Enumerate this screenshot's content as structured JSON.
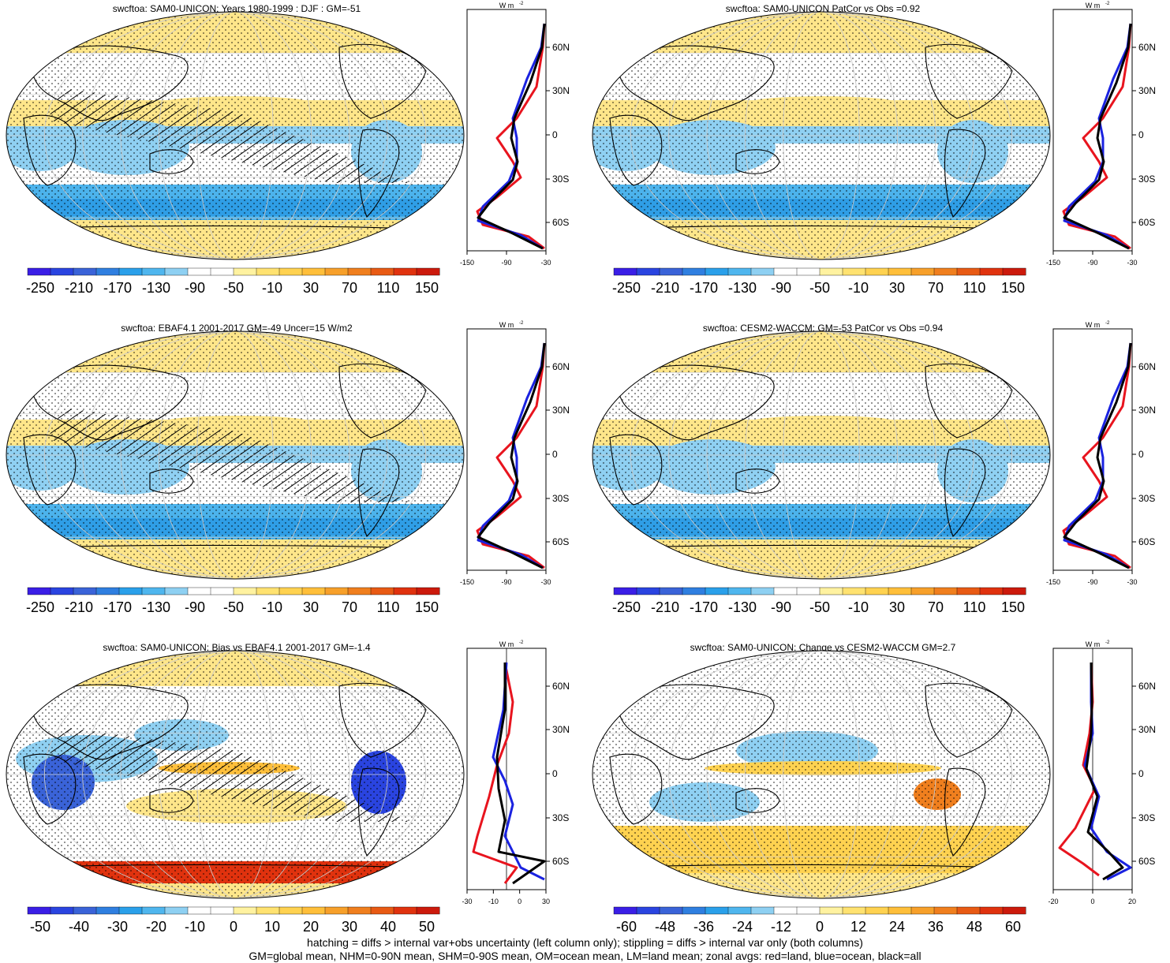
{
  "panels": [
    {
      "id": "p1",
      "title": "swcftoa: SAM0-UNICON: Years 1980-1999 : DJF : GM=-51",
      "colorbar_labels": [
        "-250",
        "-210",
        "-170",
        "-130",
        "-90",
        "-50",
        "-10",
        "30",
        "70",
        "110",
        "150"
      ],
      "zonal_x_labels": [
        "-150",
        "-90",
        "-30"
      ],
      "zonal_units": "W m",
      "zonal_units_sup": "-2",
      "lat_labels": [
        "60N",
        "30N",
        "0",
        "30S",
        "60S"
      ],
      "hatching": true,
      "kind": "abs"
    },
    {
      "id": "p2",
      "title": "swcftoa: SAM0-UNICON PatCor vs Obs =0.92",
      "colorbar_labels": [
        "-250",
        "-210",
        "-170",
        "-130",
        "-90",
        "-50",
        "-10",
        "30",
        "70",
        "110",
        "150"
      ],
      "zonal_x_labels": [
        "-150",
        "-90",
        "-30"
      ],
      "zonal_units": "W m",
      "zonal_units_sup": "-2",
      "lat_labels": [
        "60N",
        "30N",
        "0",
        "30S",
        "60S"
      ],
      "hatching": false,
      "kind": "abs"
    },
    {
      "id": "p3",
      "title": "swcftoa: EBAF4.1 2001-2017 GM=-49 Uncer=15 W/m2",
      "colorbar_labels": [
        "-250",
        "-210",
        "-170",
        "-130",
        "-90",
        "-50",
        "-10",
        "30",
        "70",
        "110",
        "150"
      ],
      "zonal_x_labels": [
        "-150",
        "-90",
        "-30"
      ],
      "zonal_units": "W m",
      "zonal_units_sup": "-2",
      "lat_labels": [
        "60N",
        "30N",
        "0",
        "30S",
        "60S"
      ],
      "hatching": true,
      "kind": "abs"
    },
    {
      "id": "p4",
      "title": "swcftoa: CESM2-WACCM: GM=-53 PatCor vs Obs =0.94",
      "colorbar_labels": [
        "-250",
        "-210",
        "-170",
        "-130",
        "-90",
        "-50",
        "-10",
        "30",
        "70",
        "110",
        "150"
      ],
      "zonal_x_labels": [
        "-150",
        "-90",
        "-30"
      ],
      "zonal_units": "W m",
      "zonal_units_sup": "-2",
      "lat_labels": [
        "60N",
        "30N",
        "0",
        "30S",
        "60S"
      ],
      "hatching": false,
      "kind": "abs"
    },
    {
      "id": "p5",
      "title": "swcftoa: SAM0-UNICON: Bias vs EBAF4.1 2001-2017 GM=-1.4",
      "colorbar_labels": [
        "-50",
        "-40",
        "-30",
        "-20",
        "-10",
        "0",
        "10",
        "20",
        "30",
        "40",
        "50"
      ],
      "zonal_x_labels": [
        "-30",
        "-10",
        "0",
        "30"
      ],
      "zonal_units": "W m",
      "zonal_units_sup": "-2",
      "lat_labels": [
        "60N",
        "30N",
        "0",
        "30S",
        "60S"
      ],
      "hatching": true,
      "kind": "bias"
    },
    {
      "id": "p6",
      "title": "swcftoa: SAM0-UNICON: Change vs CESM2-WACCM GM=2.7",
      "colorbar_labels": [
        "-60",
        "-48",
        "-36",
        "-24",
        "-12",
        "0",
        "12",
        "24",
        "36",
        "48",
        "60"
      ],
      "zonal_x_labels": [
        "-20",
        "0",
        "20"
      ],
      "zonal_units": "W m",
      "zonal_units_sup": "-2",
      "lat_labels": [
        "60N",
        "30N",
        "0",
        "30S",
        "60S"
      ],
      "hatching": false,
      "kind": "change"
    }
  ],
  "colorbar_colors": [
    "#3a1ee6",
    "#2a44e0",
    "#3a63d8",
    "#2f7fe0",
    "#2aa0ea",
    "#4fb6ee",
    "#8ed0f2",
    "#ffffff",
    "#ffffff",
    "#fff2a0",
    "#ffe270",
    "#ffd250",
    "#ffbf3a",
    "#f7a02a",
    "#f07f1e",
    "#e85a14",
    "#e0320e",
    "#cc1a0c"
  ],
  "footnote_line1": "hatching = diffs > internal var+obs uncertainty (left column only); stippling = diffs > internal var only (both columns)",
  "footnote_line2": "GM=global mean, NHM=0-90N mean, SHM=0-90S mean, OM=ocean mean, LM=land mean; zonal avgs: red=land, blue=ocean, black=all",
  "zonal_legend": {
    "land": "#e8141e",
    "ocean": "#1a22e0",
    "all": "#000000"
  }
}
